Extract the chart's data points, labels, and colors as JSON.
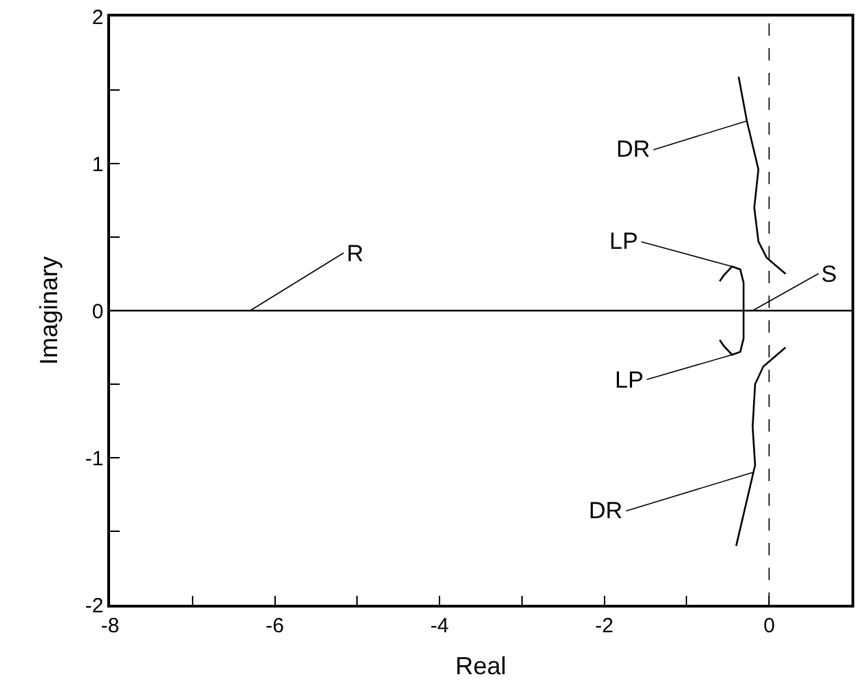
{
  "chart_data": {
    "type": "line",
    "xlabel": "Real",
    "ylabel": "Imaginary",
    "xlim": [
      -8,
      1
    ],
    "ylim": [
      -2,
      2
    ],
    "xticks": [
      -8,
      {
        "value": -7,
        "label": null
      },
      -6,
      {
        "value": -5,
        "label": null
      },
      -4,
      {
        "value": -3,
        "label": null
      },
      -2,
      {
        "value": -1,
        "label": null
      },
      0
    ],
    "yticks": [
      -2,
      {
        "value": -1.5,
        "label": null
      },
      -1,
      {
        "value": -0.5,
        "label": null
      },
      0,
      {
        "value": 0.5,
        "label": null
      },
      1,
      {
        "value": 1.5,
        "label": null
      },
      2
    ],
    "marker": "none",
    "line_style": "solid",
    "series": [
      {
        "color": "#000000",
        "x": [
          -8,
          -6.3,
          -4.4,
          -2,
          -0.31,
          -0.2,
          0,
          1
        ],
        "values": [
          0,
          0,
          0,
          0,
          0,
          0,
          0,
          0
        ]
      },
      {
        "color": "#000000",
        "x": [
          -0.37,
          -0.27,
          -0.13,
          -0.18,
          -0.13,
          -0.03,
          0.2
        ],
        "values": [
          1.59,
          1.29,
          0.96,
          0.7,
          0.47,
          0.36,
          0.25
        ]
      },
      {
        "color": "#000000",
        "x": [
          -0.4,
          -0.17,
          -0.2,
          -0.17,
          -0.07,
          0.2
        ],
        "values": [
          -1.6,
          -1.05,
          -0.79,
          -0.5,
          -0.38,
          -0.25
        ]
      },
      {
        "color": "#000000",
        "x": [
          -0.6,
          -0.55,
          -0.45,
          -0.35,
          -0.31,
          -0.31,
          -0.31,
          -0.35,
          -0.45,
          -0.55,
          -0.6
        ],
        "values": [
          0.2,
          0.24,
          0.3,
          0.28,
          0.19,
          0,
          -0.19,
          -0.28,
          -0.3,
          -0.24,
          -0.2
        ]
      }
    ],
    "ref_lines": [
      {
        "axis": "x",
        "value": 0,
        "color": "#000000",
        "line_style": "dashed"
      }
    ],
    "annotations": [
      {
        "text": "R",
        "x": -6.3,
        "y": 0
      },
      {
        "text": "DR",
        "x": -0.27,
        "y": 1.29
      },
      {
        "text": "LP",
        "x": -0.45,
        "y": 0.3
      },
      {
        "text": "S",
        "x": -0.2,
        "y": 0
      },
      {
        "text": "LP",
        "x": -0.45,
        "y": -0.3
      },
      {
        "text": "DR",
        "x": -0.2,
        "y": -1.1
      }
    ]
  }
}
